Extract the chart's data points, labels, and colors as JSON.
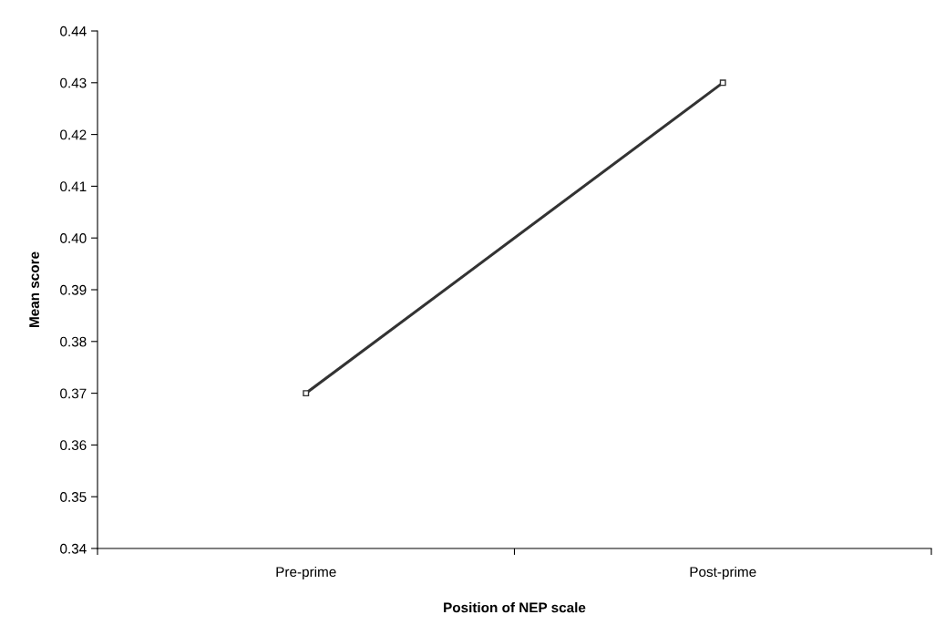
{
  "chart_data": {
    "type": "line",
    "xlabel": "Position of NEP scale",
    "ylabel": "Mean score",
    "categories": [
      "Pre-prime",
      "Post-prime"
    ],
    "series": [
      {
        "color": "#333333",
        "values": [
          0.37,
          0.43
        ]
      }
    ],
    "ylim": [
      0.34,
      0.44
    ],
    "yticks": [
      {
        "value": 0.34,
        "label": "0.34"
      },
      {
        "value": 0.35,
        "label": "0.35"
      },
      {
        "value": 0.36,
        "label": "0.36"
      },
      {
        "value": 0.37,
        "label": "0.37"
      },
      {
        "value": 0.38,
        "label": "0.38"
      },
      {
        "value": 0.39,
        "label": "0.39"
      },
      {
        "value": 0.4,
        "label": "0.40"
      },
      {
        "value": 0.41,
        "label": "0.41"
      },
      {
        "value": 0.42,
        "label": "0.42"
      },
      {
        "value": 0.43,
        "label": "0.43"
      },
      {
        "value": 0.44,
        "label": "0.44"
      }
    ],
    "grid": false,
    "legend": false,
    "marker": "square",
    "line_style": "solid"
  }
}
